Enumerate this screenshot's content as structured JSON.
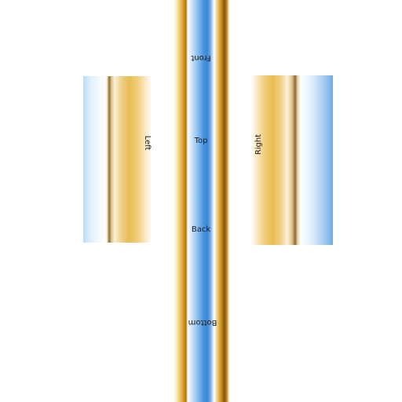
{
  "faces": {
    "front": "Front",
    "top": "Top",
    "back": "Back",
    "bottom": "Bottom",
    "left": "Left",
    "right": "Right"
  },
  "colors": {
    "gold": "#e9bd55",
    "dark_gold": "#c98a1a",
    "blue": "#4a95e0",
    "light_blue": "#bcdcf7",
    "background": "#ffffff"
  }
}
